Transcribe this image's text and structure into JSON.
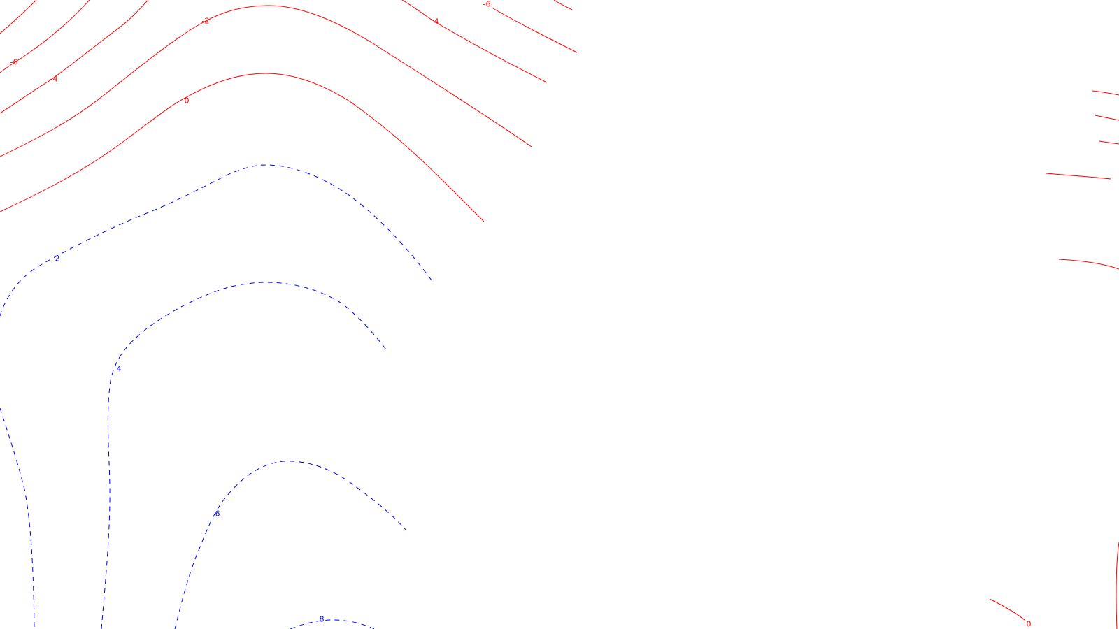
{
  "map": {
    "colors": {
      "negative": "#ff0000",
      "positive": "#0000ff"
    },
    "line_styles": {
      "negative": "solid",
      "positive": "dashed"
    },
    "contour_levels_labeled": [
      "-6",
      "-4",
      "-2",
      "0",
      "2",
      "4",
      "6",
      "8"
    ],
    "labels": {
      "neg6_left": "-6",
      "neg4_left": "-4",
      "neg2_top": "-2",
      "zero_top": "0",
      "neg4_right": "-4",
      "neg6_right": "-6",
      "pos2": "2",
      "pos4": "4",
      "pos6": "6",
      "pos8": "8",
      "zero_bottom_right": "0"
    }
  }
}
